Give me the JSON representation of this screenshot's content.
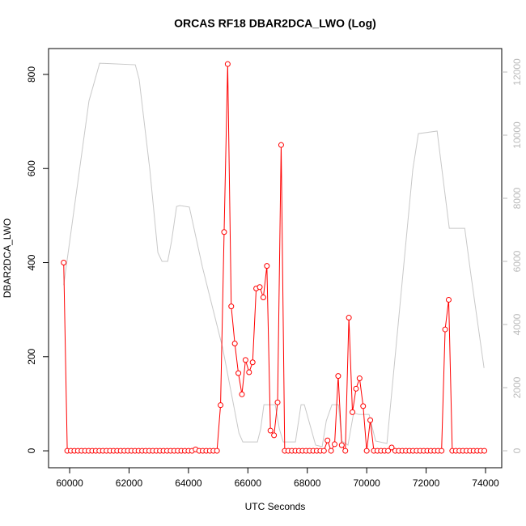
{
  "chart_data": {
    "type": "line",
    "title": "ORCAS RF18 DBAR2DCA_LWO (Log)",
    "x_label": "UTC Seconds",
    "y_label": "DBAR2DCA_LWO",
    "xlim": [
      59290,
      74545
    ],
    "xticks": [
      60000,
      62000,
      64000,
      66000,
      68000,
      70000,
      72000,
      74000
    ],
    "ylim": [
      -36,
      855
    ],
    "yticks": [
      0,
      200,
      400,
      600,
      800
    ],
    "y2lim": [
      -538,
      12744
    ],
    "y2ticks": [
      0,
      2000,
      4000,
      6000,
      8000,
      10000,
      12000
    ],
    "series": [
      {
        "color": "#ff0000",
        "marker": "circle",
        "x": [
          59800,
          59920,
          60040,
          60160,
          60280,
          60400,
          60520,
          60640,
          60760,
          60880,
          61000,
          61120,
          61240,
          61360,
          61480,
          61600,
          61720,
          61840,
          61960,
          62080,
          62200,
          62320,
          62440,
          62560,
          62680,
          62800,
          62920,
          63040,
          63160,
          63280,
          63400,
          63520,
          63640,
          63760,
          63880,
          64000,
          64120,
          64240,
          64360,
          64480,
          64600,
          64720,
          64840,
          64960,
          65080,
          65200,
          65320,
          65440,
          65560,
          65680,
          65800,
          65920,
          66040,
          66160,
          66280,
          66400,
          66520,
          66640,
          66760,
          66880,
          67000,
          67120,
          67240,
          67360,
          67480,
          67600,
          67720,
          67840,
          67960,
          68080,
          68200,
          68320,
          68440,
          68560,
          68680,
          68800,
          68920,
          69040,
          69160,
          69280,
          69400,
          69520,
          69640,
          69760,
          69880,
          70000,
          70120,
          70240,
          70360,
          70480,
          70600,
          70720,
          70840,
          70960,
          71080,
          71200,
          71320,
          71440,
          71560,
          71680,
          71800,
          71920,
          72040,
          72160,
          72280,
          72400,
          72520,
          72640,
          72760,
          72880,
          73000,
          73120,
          73240,
          73360,
          73480,
          73600,
          73720,
          73840,
          73960
        ],
        "values": [
          400,
          0,
          0,
          0,
          0,
          0,
          0,
          0,
          0,
          0,
          0,
          0,
          0,
          0,
          0,
          0,
          0,
          0,
          0,
          0,
          0,
          0,
          0,
          0,
          0,
          0,
          0,
          0,
          0,
          0,
          0,
          0,
          0,
          0,
          0,
          0,
          0,
          3,
          0,
          0,
          0,
          0,
          0,
          0,
          97,
          465,
          822,
          307,
          228,
          165,
          120,
          193,
          167,
          188,
          345,
          348,
          326,
          393,
          43,
          33,
          103,
          650,
          0,
          0,
          0,
          0,
          0,
          0,
          0,
          0,
          0,
          0,
          0,
          0,
          22,
          0,
          14,
          159,
          12,
          0,
          283,
          82,
          132,
          154,
          95,
          0,
          65,
          0,
          0,
          0,
          0,
          0,
          7,
          0,
          0,
          0,
          0,
          0,
          0,
          0,
          0,
          0,
          0,
          0,
          0,
          0,
          0,
          258,
          321,
          0,
          0,
          0,
          0,
          0,
          0,
          0,
          0,
          0,
          0
        ]
      },
      {
        "color": "#c8c8c8",
        "axis": "y2",
        "x": [
          59800,
          60650,
          61010,
          62210,
          62340,
          62700,
          62970,
          63110,
          63300,
          63430,
          63600,
          63710,
          64030,
          64470,
          65150,
          65700,
          65830,
          66320,
          66430,
          66540,
          66920,
          67060,
          67190,
          67600,
          67790,
          67900,
          68280,
          68500,
          68640,
          68830,
          69050,
          69160,
          69370,
          69560,
          69730,
          70080,
          70300,
          70680,
          71550,
          71740,
          72370,
          72780,
          73300,
          73510,
          73950
        ],
        "values": [
          5250,
          11080,
          12280,
          12230,
          11770,
          8900,
          6280,
          6000,
          6000,
          6640,
          7740,
          7770,
          7720,
          5820,
          3260,
          560,
          280,
          280,
          690,
          1460,
          1460,
          690,
          280,
          280,
          1460,
          1460,
          180,
          130,
          950,
          1460,
          1460,
          310,
          180,
          1200,
          1150,
          1150,
          310,
          230,
          8900,
          10050,
          10130,
          7050,
          7050,
          5560,
          2620
        ]
      }
    ]
  }
}
